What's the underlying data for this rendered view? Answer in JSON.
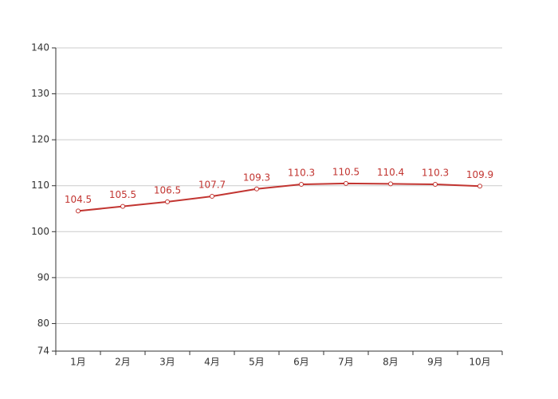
{
  "chart_data": {
    "type": "line",
    "categories": [
      "1月",
      "2月",
      "3月",
      "4月",
      "5月",
      "6月",
      "7月",
      "8月",
      "9月",
      "10月"
    ],
    "series": [
      {
        "color": "#c23531",
        "values": [
          104.5,
          105.5,
          106.5,
          107.7,
          109.3,
          110.3,
          110.5,
          110.4,
          110.3,
          109.9
        ]
      }
    ],
    "ylim": [
      74,
      140
    ],
    "yticks": [
      74,
      80,
      90,
      100,
      110,
      120,
      130,
      140
    ],
    "grid": true
  }
}
